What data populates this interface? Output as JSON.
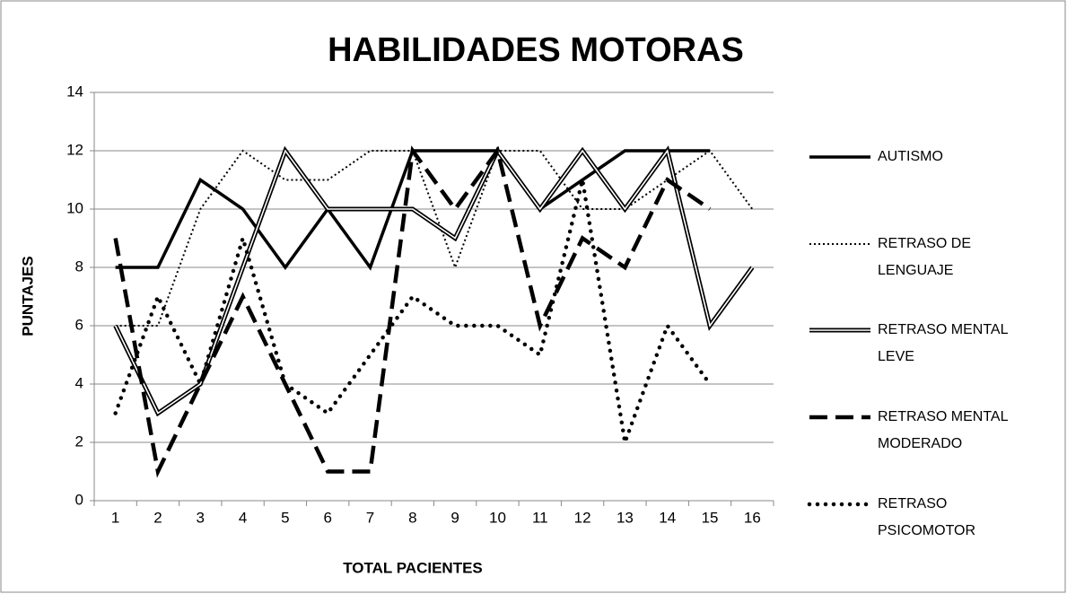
{
  "chart_data": {
    "type": "line",
    "title": "HABILIDADES MOTORAS",
    "x_label": "TOTAL PACIENTES",
    "y_label": "PUNTAJES",
    "categories": [
      "1",
      "2",
      "3",
      "4",
      "5",
      "6",
      "7",
      "8",
      "9",
      "10",
      "11",
      "12",
      "13",
      "14",
      "15",
      "16"
    ],
    "ylim": [
      0,
      14
    ],
    "yticks": [
      0,
      2,
      4,
      6,
      8,
      10,
      12,
      14
    ],
    "grid": true,
    "legend": "right",
    "series": [
      {
        "name": "AUTISMO",
        "color": "#000000",
        "dash": "solid",
        "values": [
          8,
          8,
          11,
          10,
          8,
          10,
          8,
          12,
          12,
          12,
          10,
          11,
          12,
          12,
          12,
          null
        ]
      },
      {
        "name": "RETRASO DE LENGUAJE",
        "color": "#000000",
        "dash": "dotted",
        "values": [
          6,
          6,
          10,
          12,
          11,
          11,
          12,
          12,
          8,
          12,
          12,
          10,
          10,
          11,
          12,
          10
        ]
      },
      {
        "name": "RETRASO MENTAL LEVE",
        "color": "#000000",
        "dash": "double",
        "values": [
          6,
          3,
          4,
          8,
          12,
          10,
          10,
          10,
          9,
          12,
          10,
          12,
          10,
          12,
          6,
          8
        ]
      },
      {
        "name": "RETRASO MENTAL MODERADO",
        "color": "#000000",
        "dash": "long-dash",
        "values": [
          9,
          1,
          4,
          7,
          4,
          1,
          1,
          12,
          10,
          12,
          6,
          9,
          8,
          11,
          10,
          null
        ]
      },
      {
        "name": "RETRASO PSICOMOTOR",
        "color": "#000000",
        "dash": "round-dot",
        "values": [
          3,
          7,
          4,
          9,
          4,
          3,
          5,
          7,
          6,
          6,
          5,
          11,
          2,
          6,
          4,
          null
        ]
      }
    ]
  }
}
